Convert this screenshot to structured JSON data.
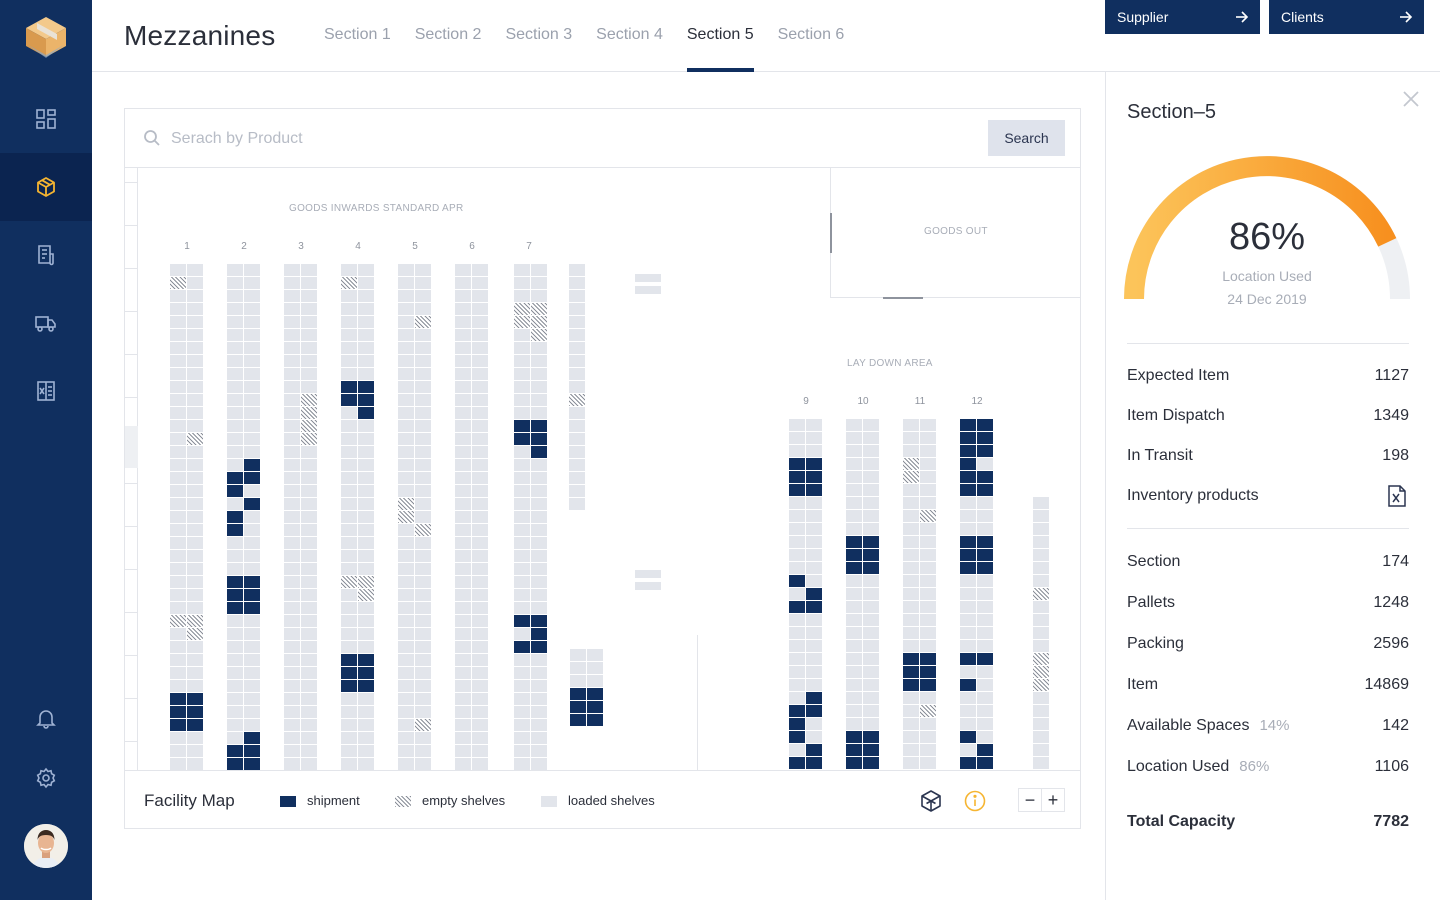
{
  "header": {
    "title": "Mezzanines",
    "tabs": [
      {
        "label": "Section 1",
        "active": false
      },
      {
        "label": "Section 2",
        "active": false
      },
      {
        "label": "Section 3",
        "active": false
      },
      {
        "label": "Section 4",
        "active": false
      },
      {
        "label": "Section 5",
        "active": true
      },
      {
        "label": "Section 6",
        "active": false
      }
    ],
    "supplier_label": "Supplier",
    "clients_label": "Clients"
  },
  "sidebar": {
    "items": [
      {
        "name": "dashboard-icon",
        "active": false
      },
      {
        "name": "box-icon",
        "active": true
      },
      {
        "name": "document-icon",
        "active": false
      },
      {
        "name": "truck-icon",
        "active": false
      },
      {
        "name": "spreadsheet-icon",
        "active": false
      }
    ],
    "bottom": [
      "bell-icon",
      "gear-icon"
    ]
  },
  "search": {
    "placeholder": "Serach by Product",
    "button_label": "Search"
  },
  "map": {
    "goods_inwards_label": "GOODS INWARDS STANDARD APR",
    "goods_out_label": "GOODS OUT",
    "lay_down_label": "LAY DOWN AREA",
    "rack_numbers_top": [
      "1",
      "2",
      "3",
      "4",
      "5",
      "6",
      "7"
    ],
    "rack_numbers_right": [
      "9",
      "10",
      "11",
      "12"
    ],
    "colors": {
      "shipment": "#102f5f",
      "loaded": "#e2e5eb",
      "empty": "#8a8f99"
    }
  },
  "footer": {
    "title": "Facility Map",
    "legend": [
      {
        "label": "shipment",
        "type": "shipment"
      },
      {
        "label": "empty shelves",
        "type": "empty"
      },
      {
        "label": "loaded shelves",
        "type": "loaded"
      }
    ],
    "zoom_out": "−",
    "zoom_in": "+"
  },
  "panel": {
    "title": "Section–5",
    "gauge": {
      "value": "86%",
      "fraction": 0.86,
      "label": "Location Used",
      "date": "24 Dec 2019"
    },
    "stats_top": [
      {
        "label": "Expected Item",
        "value": "1127"
      },
      {
        "label": "Item Dispatch",
        "value": "1349"
      },
      {
        "label": "In Transit",
        "value": "198"
      },
      {
        "label": "Inventory products",
        "value": ""
      }
    ],
    "stats_bottom": [
      {
        "label": "Section",
        "sub": "",
        "value": "174"
      },
      {
        "label": "Pallets",
        "sub": "",
        "value": "1248"
      },
      {
        "label": "Packing",
        "sub": "",
        "value": "2596"
      },
      {
        "label": "Item",
        "sub": "",
        "value": "14869"
      },
      {
        "label": "Available Spaces",
        "sub": "14%",
        "value": "142"
      },
      {
        "label": "Location Used",
        "sub": "86%",
        "value": "1106"
      }
    ],
    "total": {
      "label": "Total Capacity",
      "value": "7782"
    },
    "accent": "#f6a52e"
  }
}
